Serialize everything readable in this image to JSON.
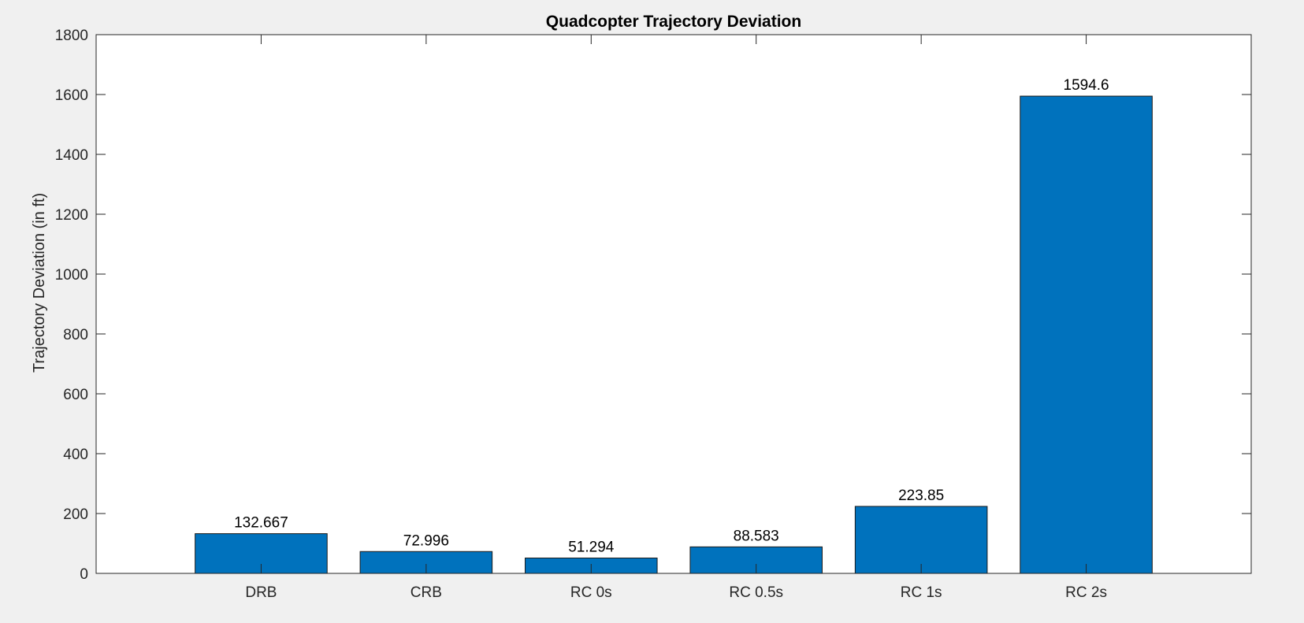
{
  "chart_data": {
    "type": "bar",
    "title": "Quadcopter Trajectory Deviation",
    "xlabel": "",
    "ylabel": "Trajectory Deviation (in ft)",
    "categories": [
      "DRB",
      "CRB",
      "RC 0s",
      "RC 0.5s",
      "RC 1s",
      "RC 2s"
    ],
    "values": [
      132.667,
      72.996,
      51.294,
      88.583,
      223.85,
      1594.6
    ],
    "data_labels": [
      "132.667",
      "72.996",
      "51.294",
      "88.583",
      "223.85",
      "1594.6"
    ],
    "ylim": [
      0,
      1800
    ],
    "yticks": [
      0,
      200,
      400,
      600,
      800,
      1000,
      1200,
      1400,
      1600,
      1800
    ],
    "xlim": [
      0,
      7
    ],
    "grid": false,
    "legend": "none",
    "colors": {
      "bar_fill": "#0072bd",
      "bar_edge": "#1a1a1a",
      "axes_bg": "#ffffff",
      "figure_bg": "#f0f0f0",
      "axis_line": "#262626"
    }
  }
}
